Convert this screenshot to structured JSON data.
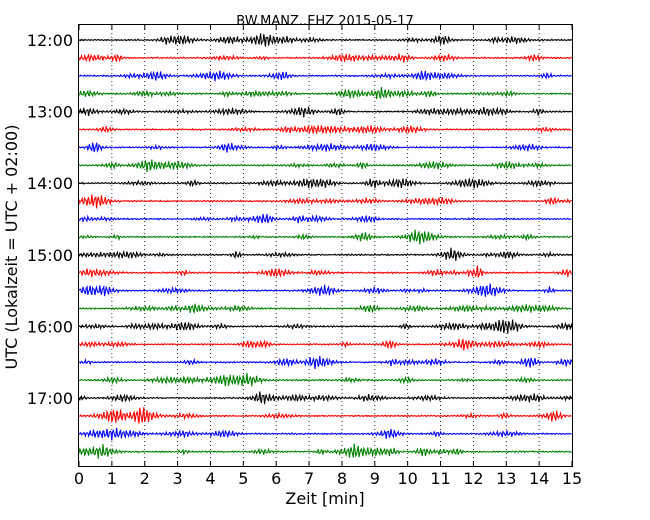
{
  "chart_data": {
    "type": "line",
    "title": "BW.MANZ..EHZ 2015-05-17",
    "xlabel": "Zeit  [min]",
    "ylabel": "UTC (Lokalzeit = UTC + 02:00)",
    "x_ticks": [
      "0",
      "1",
      "2",
      "3",
      "4",
      "5",
      "6",
      "7",
      "8",
      "9",
      "10",
      "11",
      "12",
      "13",
      "14",
      "15"
    ],
    "xlim": [
      0,
      15
    ],
    "y_tick_labels": [
      "12:00",
      "13:00",
      "14:00",
      "15:00",
      "16:00",
      "17:00"
    ],
    "trace_start": "12:00",
    "trace_interval_minutes": 15,
    "trace_count": 24,
    "trace_colors": [
      "#000000",
      "#ff0000",
      "#0000ff",
      "#008000"
    ],
    "grid": "vertical dotted lines at each minute"
  }
}
